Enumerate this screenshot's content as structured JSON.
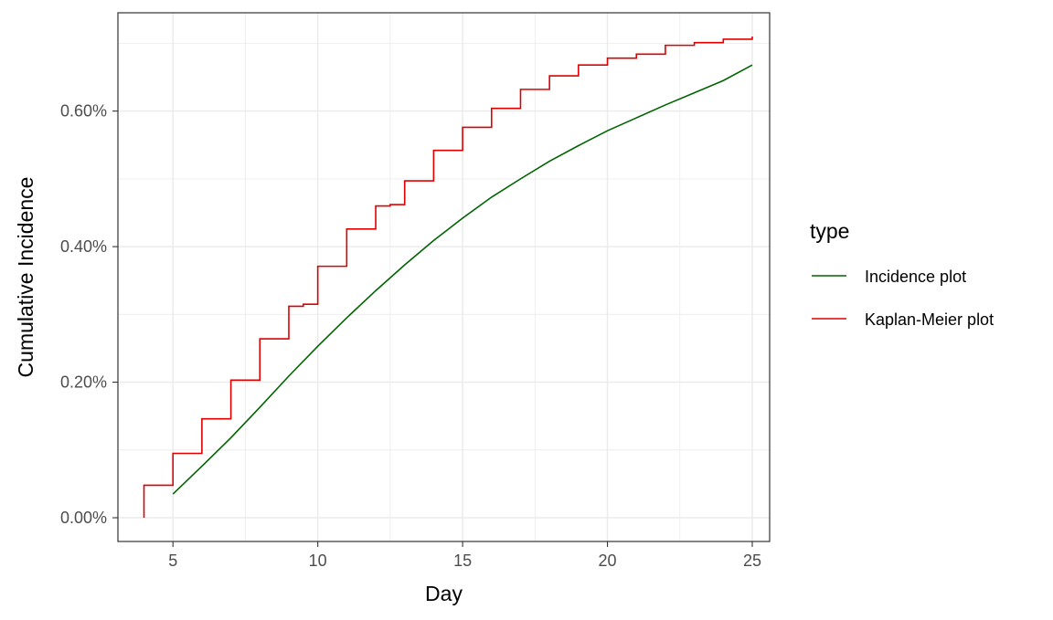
{
  "chart_data": {
    "type": "line",
    "xlabel": "Day",
    "ylabel": "Cumulative Incidence",
    "xlim": [
      3.1,
      25.6
    ],
    "ylim": [
      -0.00035,
      0.00745
    ],
    "x_ticks": [
      5,
      10,
      15,
      20,
      25
    ],
    "x_tick_labels": [
      "5",
      "10",
      "15",
      "20",
      "25"
    ],
    "y_ticks": [
      0,
      0.002,
      0.004,
      0.006
    ],
    "y_tick_labels": [
      "0.00%",
      "0.20%",
      "0.40%",
      "0.60%"
    ],
    "grid": true,
    "legend": {
      "title": "type",
      "position": "right",
      "entries": [
        "Incidence plot",
        "Kaplan-Meier plot"
      ]
    },
    "series": [
      {
        "name": "Incidence plot",
        "color": "#006400",
        "style": "line",
        "x": [
          5,
          6,
          7,
          8,
          9,
          10,
          11,
          12,
          13,
          14,
          15,
          16,
          17,
          18,
          19,
          20,
          21,
          22,
          23,
          24,
          25
        ],
        "y": [
          0.00035,
          0.00076,
          0.00118,
          0.00163,
          0.00209,
          0.00253,
          0.00295,
          0.00335,
          0.00373,
          0.00409,
          0.00442,
          0.00473,
          0.005,
          0.00526,
          0.00549,
          0.00571,
          0.0059,
          0.00609,
          0.00627,
          0.00645,
          0.00668
        ]
      },
      {
        "name": "Kaplan-Meier plot",
        "color": "#e00000",
        "style": "step",
        "x": [
          4,
          4,
          5,
          6,
          7,
          8,
          9,
          9.5,
          10,
          11,
          12,
          12.5,
          13,
          14,
          15,
          16,
          17,
          18,
          19,
          20,
          21,
          22,
          23,
          24,
          25
        ],
        "y": [
          0.0,
          0.00048,
          0.00095,
          0.00146,
          0.00203,
          0.00264,
          0.00312,
          0.00315,
          0.00371,
          0.00426,
          0.0046,
          0.00462,
          0.00497,
          0.00542,
          0.00576,
          0.00604,
          0.00632,
          0.00652,
          0.00668,
          0.00678,
          0.00684,
          0.00697,
          0.00701,
          0.00706,
          0.0071
        ]
      }
    ]
  }
}
